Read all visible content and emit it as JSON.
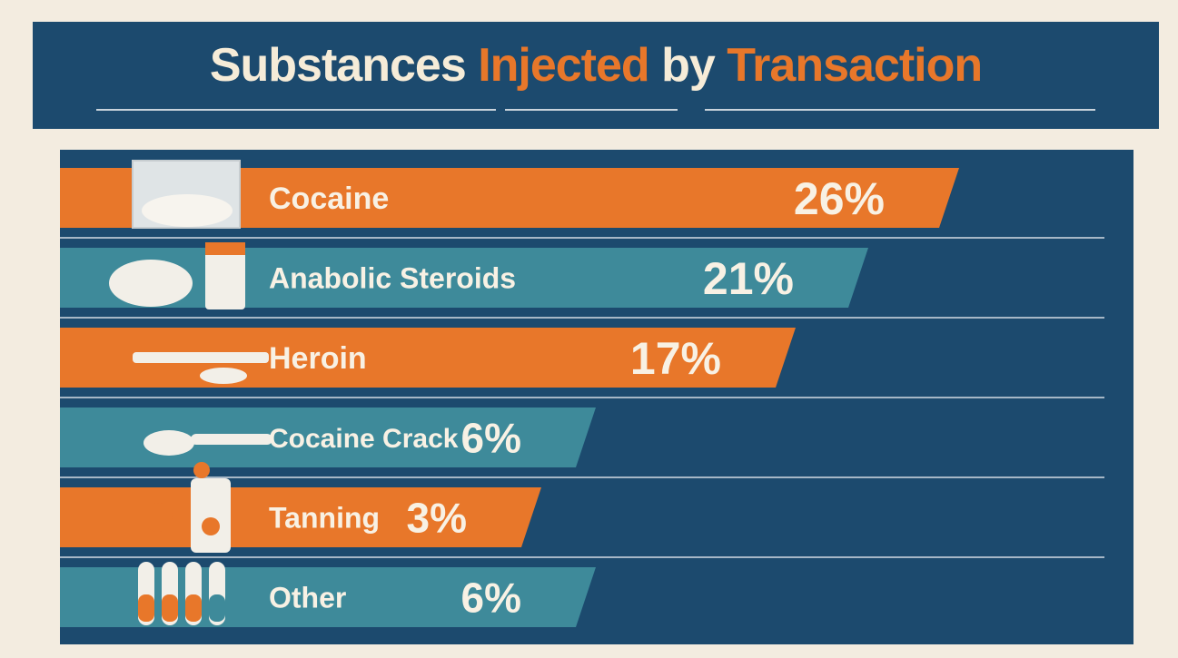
{
  "title": {
    "part1": "Substances ",
    "part2": "Injected",
    "part3": " by ",
    "part4": "Transaction"
  },
  "colors": {
    "banner": "#1c4a6e",
    "orange": "#e8772a",
    "teal": "#3e8a9a",
    "background": "#f3ece0",
    "text": "#f8f1e4"
  },
  "chart_data": {
    "type": "bar",
    "orientation": "horizontal",
    "categories": [
      "Cocaine",
      "Anabolic Steroids",
      "Heroin",
      "Cocaine Crack",
      "Tanning",
      "Other"
    ],
    "values": [
      26,
      21,
      17,
      6,
      3,
      6
    ],
    "value_labels": [
      "26%",
      "21%",
      "17%",
      "6%",
      "3%",
      "6%"
    ],
    "bar_colors": [
      "#e8772a",
      "#3e8a9a",
      "#e8772a",
      "#3e8a9a",
      "#e8772a",
      "#3e8a9a"
    ],
    "icons": [
      "baggie-icon",
      "muscle-arm-bottle-icon",
      "syringe-spoon-icon",
      "cooking-spoon-icon",
      "sun-bottle-icon",
      "test-tubes-icon"
    ]
  }
}
